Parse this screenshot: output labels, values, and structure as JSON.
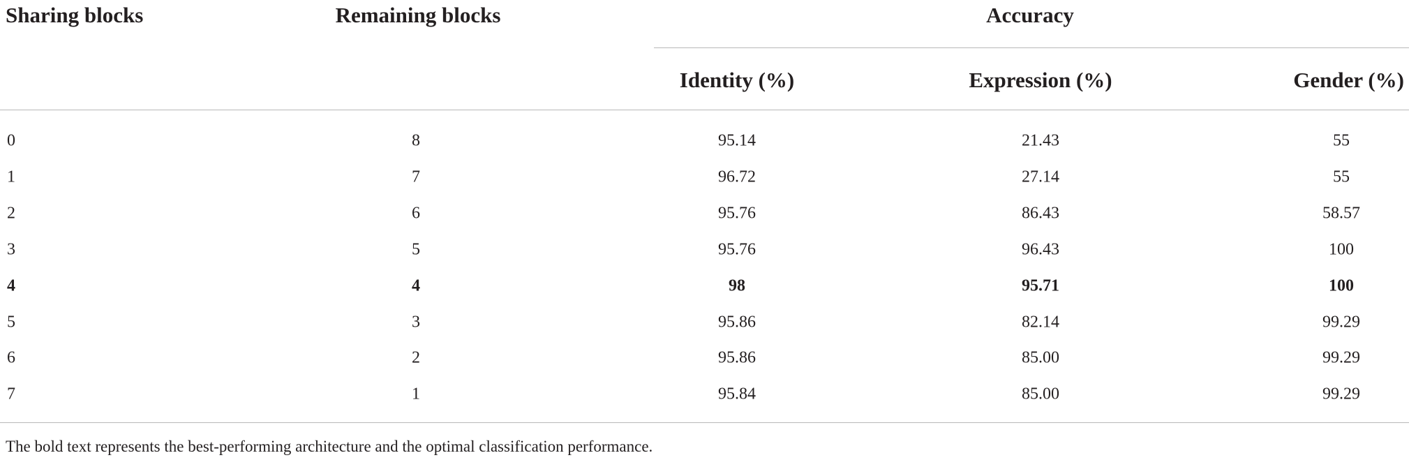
{
  "table": {
    "headers": {
      "sharing": "Sharing blocks",
      "remaining": "Remaining blocks",
      "accuracy": "Accuracy",
      "sub": [
        "Identity (%)",
        "Expression (%)",
        "Gender (%)"
      ]
    },
    "rows": [
      [
        "0",
        "8",
        "95.14",
        "21.43",
        "55"
      ],
      [
        "1",
        "7",
        "96.72",
        "27.14",
        "55"
      ],
      [
        "2",
        "6",
        "95.76",
        "86.43",
        "58.57"
      ],
      [
        "3",
        "5",
        "95.76",
        "96.43",
        "100"
      ],
      [
        "4",
        "4",
        "98",
        "95.71",
        "100"
      ],
      [
        "5",
        "3",
        "95.86",
        "82.14",
        "99.29"
      ],
      [
        "6",
        "2",
        "95.86",
        "85.00",
        "99.29"
      ],
      [
        "7",
        "1",
        "95.84",
        "85.00",
        "99.29"
      ]
    ],
    "bold_row": 4,
    "footnote": "The bold text represents the best-performing architecture and the optimal classification performance."
  }
}
